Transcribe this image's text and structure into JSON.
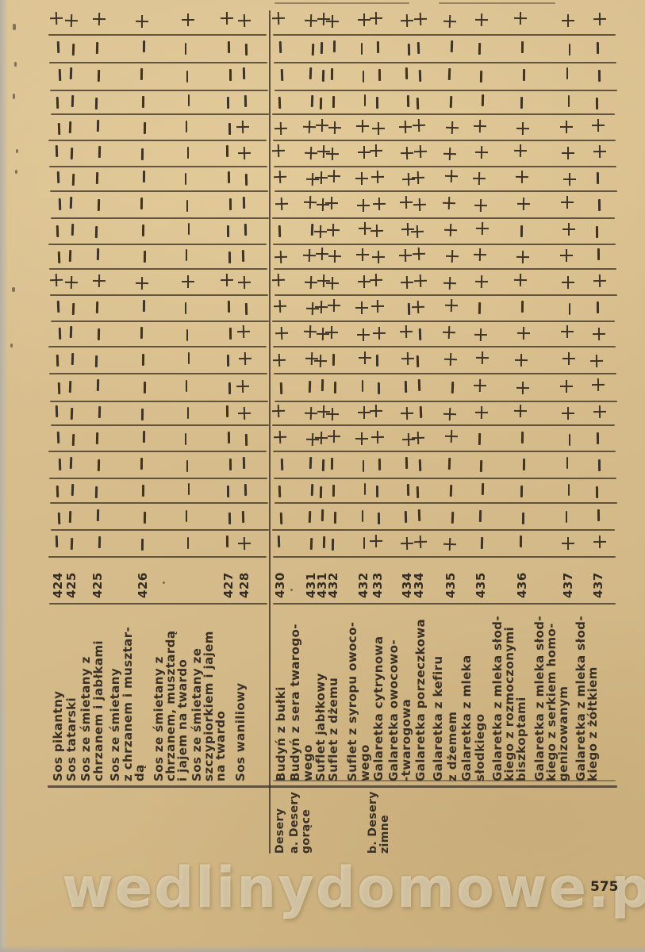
{
  "page": {
    "watermark": "wedlinydomowe.pl",
    "page_number": "575",
    "paper_color": "#d8be8d",
    "ink_color": "#3d3327"
  },
  "table": {
    "orientation": "rotated-90-counterclockwise",
    "band_count": 21,
    "mark_legend": {
      "allowed": "+",
      "not_allowed": "-"
    },
    "sections": [
      {
        "id": "sosy",
        "category_labels": [],
        "dishes": [
          {
            "name_lines": [
              "Sos pikantny"
            ],
            "number": "424",
            "marks": "+---------+----------"
          },
          {
            "name_lines": [
              "Sos tatarski"
            ],
            "number": "425",
            "marks": "+---------+----------"
          },
          {
            "name_lines": [
              "Sos ze śmietany z",
              "chrzanem i jabłkami"
            ],
            "number": "425",
            "marks": "+---------+----------"
          },
          {
            "name_lines": [
              "Sos ze śmietany",
              "z chrzanem i musztar-",
              "dą"
            ],
            "number": "426",
            "marks": "+---------+----------"
          },
          {
            "name_lines": [
              "Sos ze śmietany z",
              "chrzanem, musztardą",
              "i jajem na twardo"
            ],
            "number": "",
            "marks": "+---------+----------"
          },
          {
            "name_lines": [
              "Sos ze śmietany ze",
              "szczypiorkiem i jajem",
              "na twardo"
            ],
            "number": "427",
            "marks": "+---------+----------"
          },
          {
            "name_lines": [
              "Sos waniliowy"
            ],
            "number": "428",
            "marks": "+---++----+-++++----+"
          }
        ]
      },
      {
        "id": "desery",
        "category_labels": [
          {
            "lines": [
              "Desery"
            ]
          },
          {
            "lines": [
              "a. Desery",
              "gorące"
            ]
          },
          {
            "lines": [
              "b. Desery",
              "zimne"
            ]
          }
        ],
        "dishes": [
          {
            "name_lines": [
              "Budyń z bułki"
            ],
            "number": "430",
            "marks": "+---++++-+++++-++----"
          },
          {
            "name_lines": [
              "Budyń z sera twarogo-",
              "wego"
            ],
            "number": "431",
            "marks": "+---++++-+++++-++----"
          },
          {
            "name_lines": [
              "Suflet jabłkowy"
            ],
            "number": "431",
            "marks": "+---++++++++++-++----"
          },
          {
            "name_lines": [
              "Suflet z dżemu"
            ],
            "number": "432",
            "marks": "+---+++++++++--++----"
          },
          {
            "name_lines": [
              "Suflet z syropu owoco-",
              "wego"
            ],
            "number": "432",
            "marks": "+---++++++++++-++----"
          },
          {
            "name_lines": [
              "Galaretka cytrynowa"
            ],
            "number": "433",
            "marks": "+---+++++++++--++---+"
          },
          {
            "name_lines": [
              "Galaretka owocowo-",
              "-twarogowa"
            ],
            "number": "434",
            "marks": "+---+++++++-++-++---+"
          },
          {
            "name_lines": [
              "Galaretka porzeczkowa"
            ],
            "number": "434",
            "marks": "+---++++++++----+---+"
          },
          {
            "name_lines": [
              "Galaretka z kefiru",
              "z dżemem"
            ],
            "number": "435",
            "marks": "+---++++++++++-++---+"
          },
          {
            "name_lines": [
              "Galaretka z mleka",
              "słodkiego"
            ],
            "number": "435",
            "marks": "+---+++++++-++++-----"
          },
          {
            "name_lines": [
              "Galaretka z mleka słod-",
              "kiego z rozmoczonymi",
              "biszkoptami"
            ],
            "number": "436",
            "marks": "+---++++-++-++++-----"
          },
          {
            "name_lines": [
              "Galaretka z mleka słod-",
              "kiego z serkiem homo-",
              "genizowanym"
            ],
            "number": "437",
            "marks": "+---+++++++-++++----+"
          },
          {
            "name_lines": [
              "Galaretka z mleka słod-",
              "kiego z żółtkiem"
            ],
            "number": "437",
            "marks": "+---++----+-++++----+"
          }
        ]
      }
    ]
  }
}
